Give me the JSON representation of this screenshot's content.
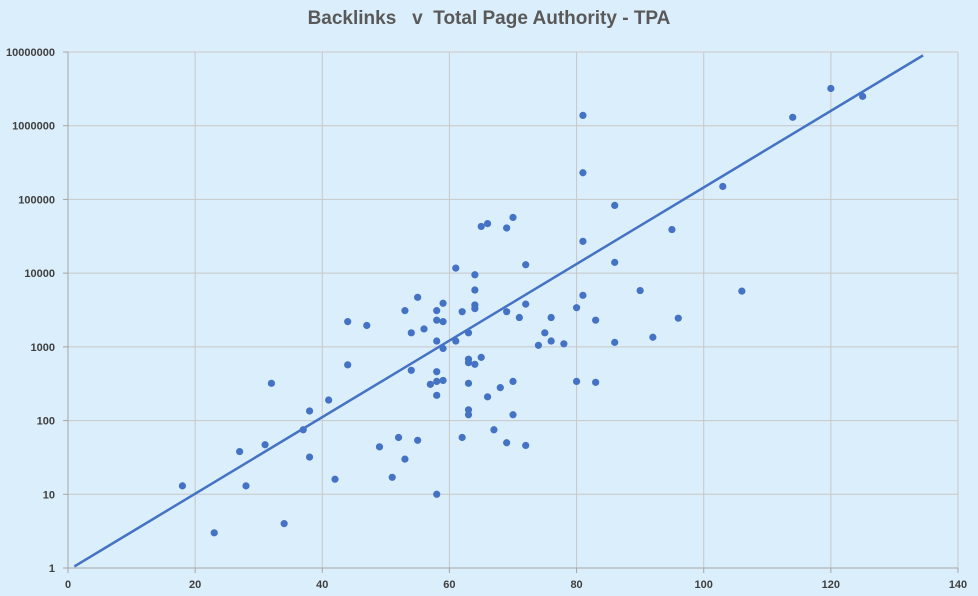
{
  "chart_data": {
    "type": "scatter",
    "title": "Backlinks   v  Total Page Authority - TPA",
    "xlabel": "",
    "ylabel": "",
    "xlim": [
      0,
      140
    ],
    "ylim": [
      1,
      10000000
    ],
    "x_ticks": [
      0,
      20,
      40,
      60,
      80,
      100,
      120,
      140
    ],
    "y_ticks": [
      1,
      10,
      100,
      1000,
      10000,
      100000,
      1000000,
      10000000
    ],
    "x_tick_labels": [
      "0",
      "20",
      "40",
      "60",
      "80",
      "100",
      "120",
      "140"
    ],
    "y_tick_labels": [
      "1",
      "10",
      "100",
      "1000",
      "10000",
      "100000",
      "1000000",
      "10000000"
    ],
    "y_scale": "log",
    "grid": true,
    "colors": {
      "background": "#dbeefb",
      "points": "#4472c4",
      "trendline": "#4472c4",
      "grid": "#c8c8c8"
    },
    "trendline": {
      "x": [
        1,
        134.5
      ],
      "y": [
        1.05,
        9000000
      ]
    },
    "points": [
      {
        "x": 18,
        "y": 13
      },
      {
        "x": 23,
        "y": 3
      },
      {
        "x": 27,
        "y": 38
      },
      {
        "x": 28,
        "y": 13
      },
      {
        "x": 31,
        "y": 47
      },
      {
        "x": 32,
        "y": 320
      },
      {
        "x": 34,
        "y": 4
      },
      {
        "x": 37,
        "y": 75
      },
      {
        "x": 38,
        "y": 135
      },
      {
        "x": 38,
        "y": 32
      },
      {
        "x": 41,
        "y": 190
      },
      {
        "x": 42,
        "y": 16
      },
      {
        "x": 44,
        "y": 2200
      },
      {
        "x": 44,
        "y": 570
      },
      {
        "x": 47,
        "y": 1950
      },
      {
        "x": 49,
        "y": 44
      },
      {
        "x": 51,
        "y": 17
      },
      {
        "x": 52,
        "y": 59
      },
      {
        "x": 53,
        "y": 3100
      },
      {
        "x": 53,
        "y": 30
      },
      {
        "x": 54,
        "y": 1550
      },
      {
        "x": 54,
        "y": 480
      },
      {
        "x": 55,
        "y": 4700
      },
      {
        "x": 55,
        "y": 54
      },
      {
        "x": 56,
        "y": 1750
      },
      {
        "x": 57,
        "y": 310
      },
      {
        "x": 58,
        "y": 3100
      },
      {
        "x": 58,
        "y": 2300
      },
      {
        "x": 58,
        "y": 1200
      },
      {
        "x": 58,
        "y": 460
      },
      {
        "x": 58,
        "y": 340
      },
      {
        "x": 58,
        "y": 220
      },
      {
        "x": 58,
        "y": 10
      },
      {
        "x": 59,
        "y": 3900
      },
      {
        "x": 59,
        "y": 2200
      },
      {
        "x": 59,
        "y": 950
      },
      {
        "x": 59,
        "y": 350
      },
      {
        "x": 61,
        "y": 11700
      },
      {
        "x": 61,
        "y": 1200
      },
      {
        "x": 62,
        "y": 3000
      },
      {
        "x": 62,
        "y": 59
      },
      {
        "x": 63,
        "y": 1550
      },
      {
        "x": 63,
        "y": 680
      },
      {
        "x": 63,
        "y": 610
      },
      {
        "x": 63,
        "y": 320
      },
      {
        "x": 63,
        "y": 140
      },
      {
        "x": 63,
        "y": 120
      },
      {
        "x": 64,
        "y": 9500
      },
      {
        "x": 64,
        "y": 5900
      },
      {
        "x": 64,
        "y": 3700
      },
      {
        "x": 64,
        "y": 3300
      },
      {
        "x": 64,
        "y": 580
      },
      {
        "x": 65,
        "y": 43000
      },
      {
        "x": 65,
        "y": 720
      },
      {
        "x": 66,
        "y": 47000
      },
      {
        "x": 66,
        "y": 210
      },
      {
        "x": 67,
        "y": 75
      },
      {
        "x": 68,
        "y": 280
      },
      {
        "x": 69,
        "y": 41000
      },
      {
        "x": 69,
        "y": 3000
      },
      {
        "x": 69,
        "y": 50
      },
      {
        "x": 70,
        "y": 57000
      },
      {
        "x": 70,
        "y": 340
      },
      {
        "x": 70,
        "y": 120
      },
      {
        "x": 71,
        "y": 2500
      },
      {
        "x": 72,
        "y": 13000
      },
      {
        "x": 72,
        "y": 3800
      },
      {
        "x": 72,
        "y": 46
      },
      {
        "x": 74,
        "y": 1050
      },
      {
        "x": 75,
        "y": 1550
      },
      {
        "x": 76,
        "y": 2500
      },
      {
        "x": 76,
        "y": 1200
      },
      {
        "x": 78,
        "y": 1100
      },
      {
        "x": 80,
        "y": 3400
      },
      {
        "x": 80,
        "y": 340
      },
      {
        "x": 81,
        "y": 1380000
      },
      {
        "x": 81,
        "y": 230000
      },
      {
        "x": 81,
        "y": 27000
      },
      {
        "x": 81,
        "y": 5000
      },
      {
        "x": 83,
        "y": 2300
      },
      {
        "x": 83,
        "y": 330
      },
      {
        "x": 86,
        "y": 83000
      },
      {
        "x": 86,
        "y": 14000
      },
      {
        "x": 86,
        "y": 1150
      },
      {
        "x": 90,
        "y": 5800
      },
      {
        "x": 92,
        "y": 1350
      },
      {
        "x": 95,
        "y": 39000
      },
      {
        "x": 96,
        "y": 2450
      },
      {
        "x": 103,
        "y": 150000
      },
      {
        "x": 106,
        "y": 5700
      },
      {
        "x": 114,
        "y": 1300000
      },
      {
        "x": 120,
        "y": 3200000
      },
      {
        "x": 125,
        "y": 2500000
      }
    ]
  }
}
